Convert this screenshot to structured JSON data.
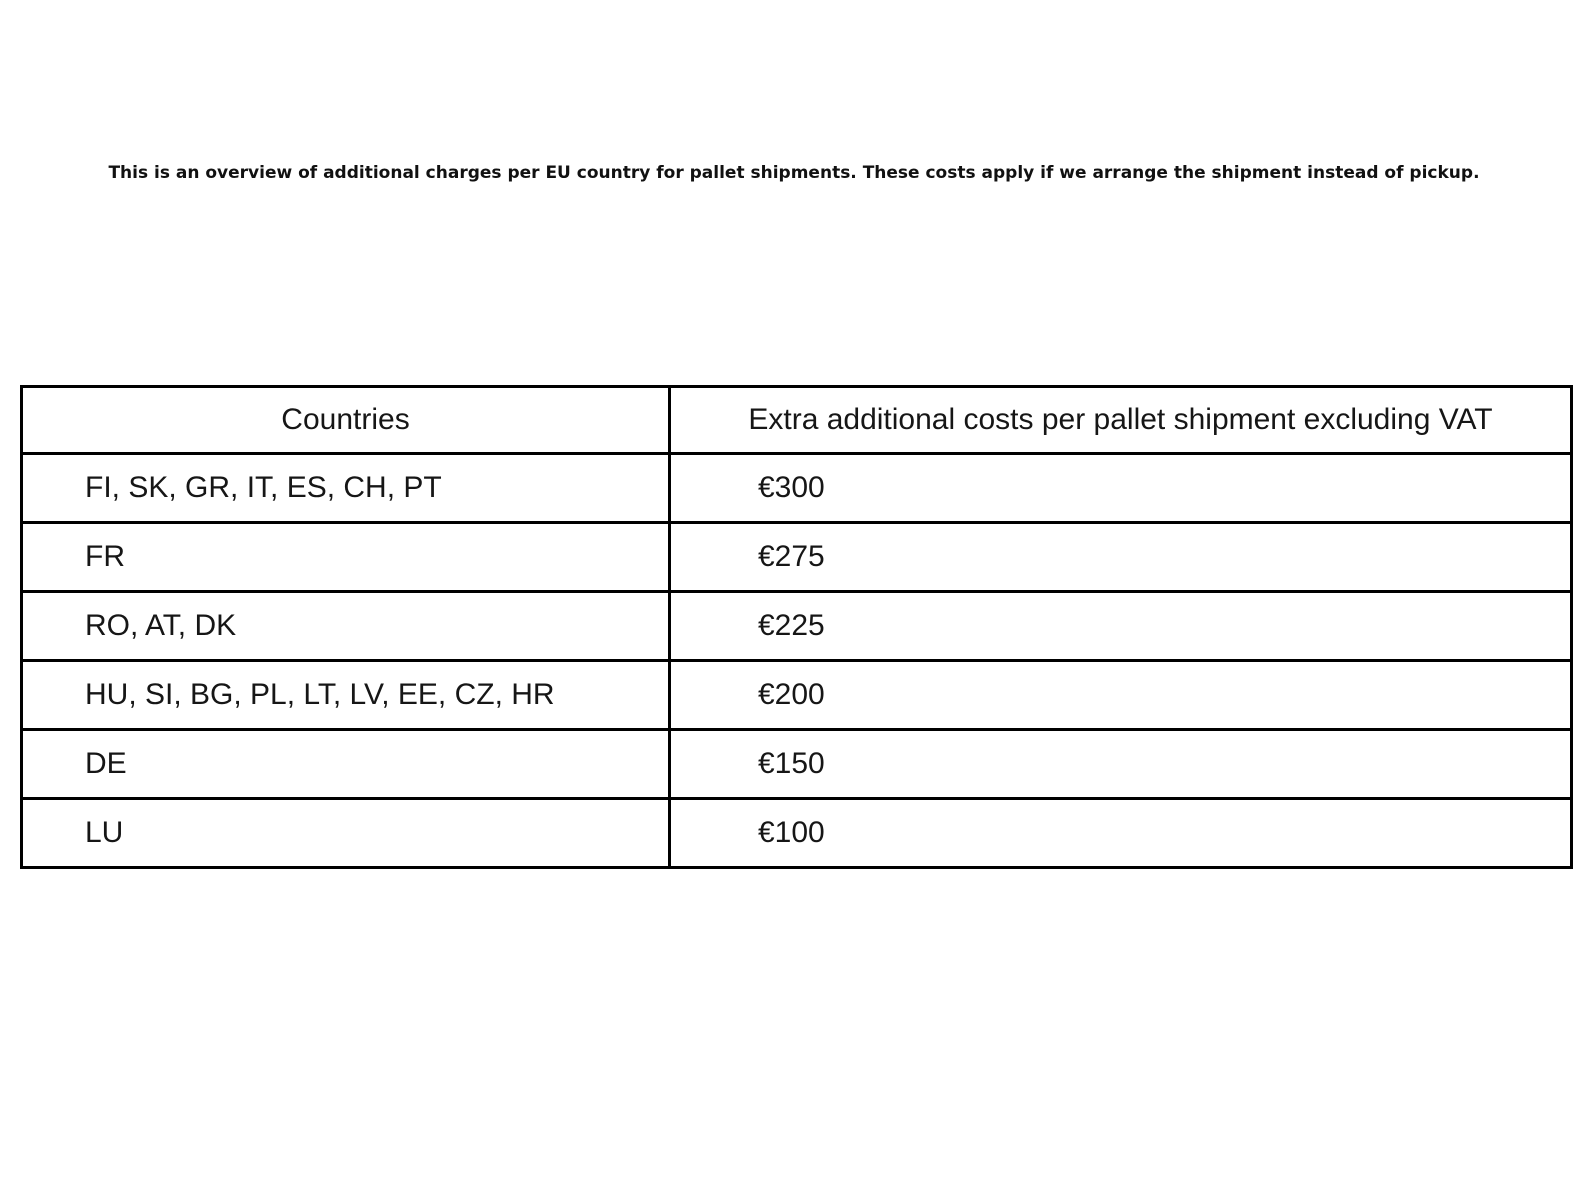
{
  "intro": {
    "text": "This is an overview of additional charges per EU country for pallet shipments. These costs apply if we arrange the shipment instead of pickup."
  },
  "table": {
    "headers": {
      "countries": "Countries",
      "cost": "Extra additional costs per pallet shipment excluding VAT"
    },
    "rows": [
      {
        "countries": "FI, SK, GR, IT, ES, CH, PT",
        "cost": "€300"
      },
      {
        "countries": "FR",
        "cost": "€275"
      },
      {
        "countries": "RO, AT, DK",
        "cost": "€225"
      },
      {
        "countries": "HU, SI, BG, PL, LT, LV, EE, CZ, HR",
        "cost": "€200"
      },
      {
        "countries": "DE",
        "cost": "€150"
      },
      {
        "countries": "LU",
        "cost": "€100"
      }
    ]
  }
}
